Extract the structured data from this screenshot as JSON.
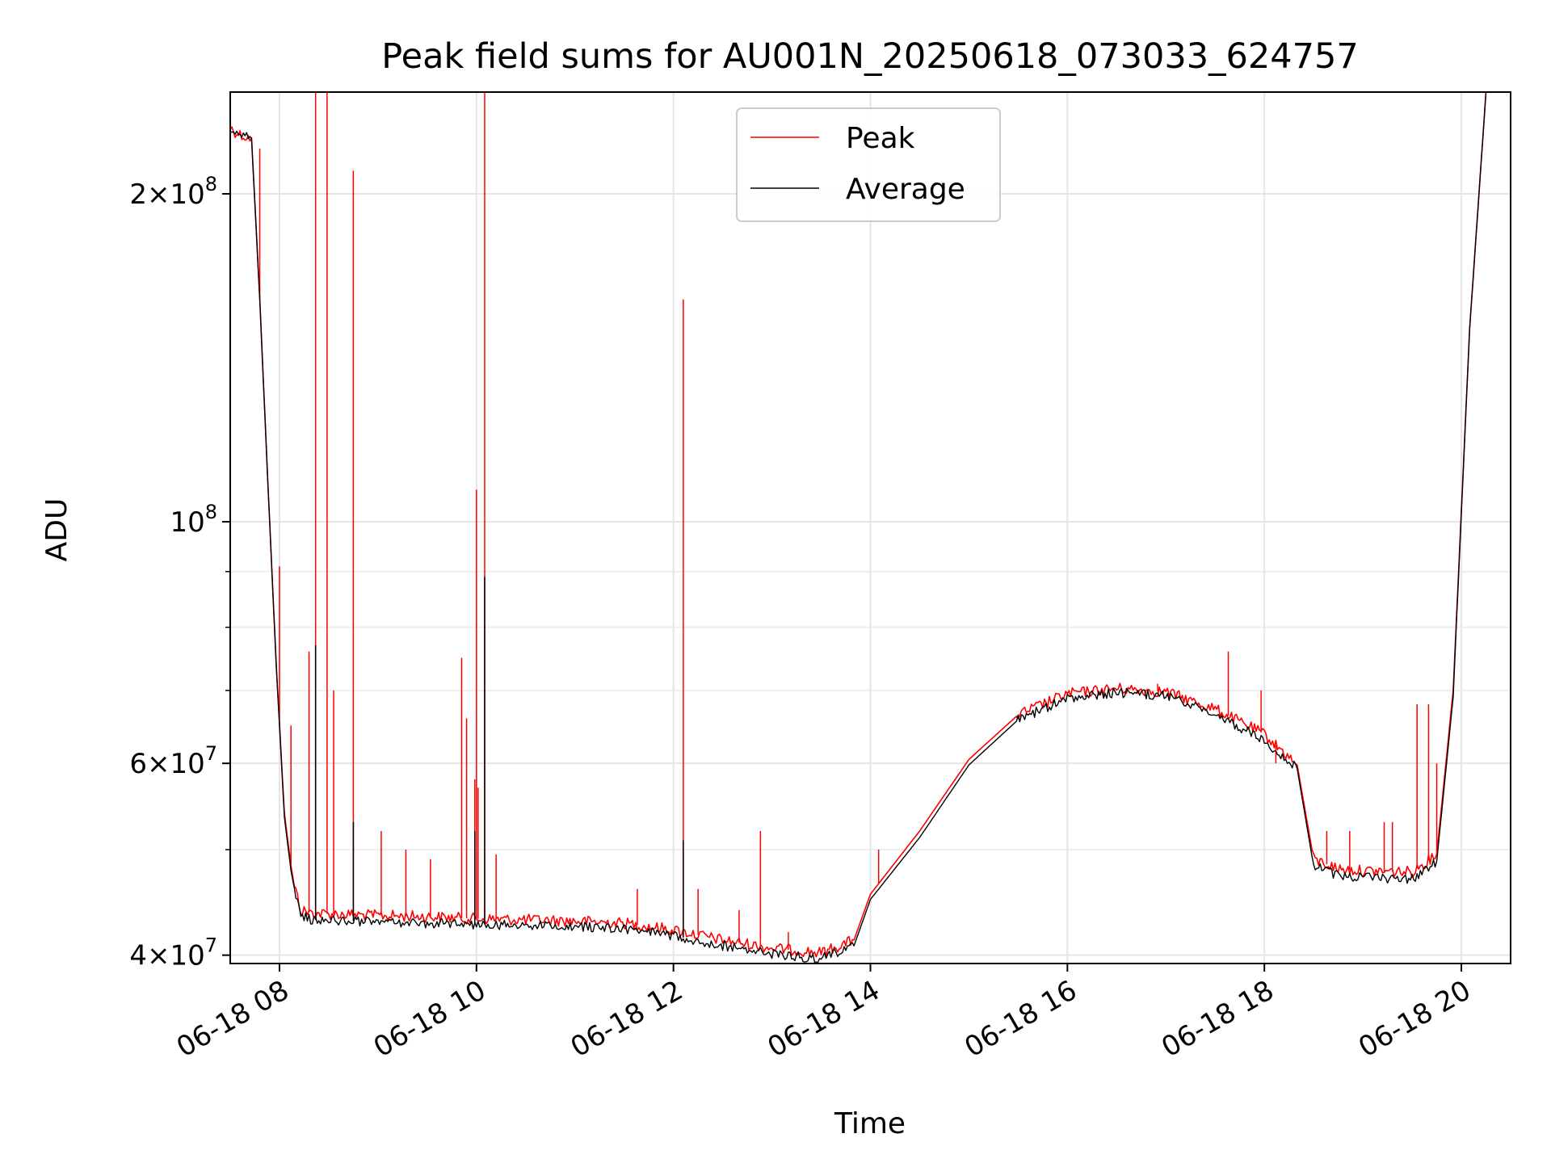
{
  "chart_data": {
    "type": "line",
    "title": "Peak field sums for AU001N_20250618_073033_624757",
    "xlabel": "Time",
    "ylabel": "ADU",
    "y_scale": "log",
    "grid": true,
    "legend_position": "upper-center",
    "xlim": [
      "2025-06-18 07:30",
      "2025-06-18 20:30"
    ],
    "ylim": [
      39300000,
      248000000
    ],
    "x_ticks": [
      {
        "t": "2025-06-18 08:00",
        "label": "06-18 08"
      },
      {
        "t": "2025-06-18 10:00",
        "label": "06-18 10"
      },
      {
        "t": "2025-06-18 12:00",
        "label": "06-18 12"
      },
      {
        "t": "2025-06-18 14:00",
        "label": "06-18 14"
      },
      {
        "t": "2025-06-18 16:00",
        "label": "06-18 16"
      },
      {
        "t": "2025-06-18 18:00",
        "label": "06-18 18"
      },
      {
        "t": "2025-06-18 20:00",
        "label": "06-18 20"
      }
    ],
    "y_ticks": [
      {
        "value": 40000000,
        "mant": "4",
        "exp": "7"
      },
      {
        "value": 60000000,
        "mant": "6",
        "exp": "7"
      },
      {
        "value": 100000000,
        "mant": "",
        "exp": "8"
      },
      {
        "value": 200000000,
        "mant": "2",
        "exp": "8"
      }
    ],
    "y_minor_ticks": [
      50000000,
      70000000,
      80000000,
      90000000
    ],
    "series": [
      {
        "name": "Peak",
        "color": "#ff0000",
        "points": [
          [
            "2025-06-18 07:30",
            230000000
          ],
          [
            "2025-06-18 07:33",
            228000000
          ],
          [
            "2025-06-18 07:38",
            226000000
          ],
          [
            "2025-06-18 07:43",
            225000000
          ],
          [
            "2025-06-18 07:48",
            160000000
          ],
          [
            "2025-06-18 07:53",
            108000000
          ],
          [
            "2025-06-18 07:58",
            74000000
          ],
          [
            "2025-06-18 08:03",
            54000000
          ],
          [
            "2025-06-18 08:08",
            47000000
          ],
          [
            "2025-06-18 08:13",
            44000000
          ],
          [
            "2025-06-18 08:20",
            43700000
          ],
          [
            "2025-06-18 08:40",
            43600000
          ],
          [
            "2025-06-18 09:00",
            43500000
          ],
          [
            "2025-06-18 09:30",
            43400000
          ],
          [
            "2025-06-18 10:00",
            43200000
          ],
          [
            "2025-06-18 10:30",
            43100000
          ],
          [
            "2025-06-18 11:00",
            43000000
          ],
          [
            "2025-06-18 11:30",
            42800000
          ],
          [
            "2025-06-18 12:00",
            42200000
          ],
          [
            "2025-06-18 12:30",
            41300000
          ],
          [
            "2025-06-18 13:00",
            40600000
          ],
          [
            "2025-06-18 13:30",
            40200000
          ],
          [
            "2025-06-18 13:50",
            41300000
          ],
          [
            "2025-06-18 14:00",
            45500000
          ],
          [
            "2025-06-18 14:30",
            52000000
          ],
          [
            "2025-06-18 15:00",
            60500000
          ],
          [
            "2025-06-18 15:30",
            66500000
          ],
          [
            "2025-06-18 16:00",
            69500000
          ],
          [
            "2025-06-18 16:30",
            70300000
          ],
          [
            "2025-06-18 17:00",
            69800000
          ],
          [
            "2025-06-18 17:30",
            67300000
          ],
          [
            "2025-06-18 18:00",
            63800000
          ],
          [
            "2025-06-18 18:20",
            59800000
          ],
          [
            "2025-06-18 18:30",
            49000000
          ],
          [
            "2025-06-18 18:45",
            48000000
          ],
          [
            "2025-06-18 19:00",
            47800000
          ],
          [
            "2025-06-18 19:30",
            47700000
          ],
          [
            "2025-06-18 19:45",
            49500000
          ],
          [
            "2025-06-18 19:55",
            70000000
          ],
          [
            "2025-06-18 20:05",
            150000000
          ],
          [
            "2025-06-18 20:15",
            248000000
          ]
        ],
        "spikes": [
          [
            "2025-06-18 07:48",
            220000000
          ],
          [
            "2025-06-18 08:00",
            91000000
          ],
          [
            "2025-06-18 08:07",
            65000000
          ],
          [
            "2025-06-18 08:18",
            76000000
          ],
          [
            "2025-06-18 08:22",
            248000000
          ],
          [
            "2025-06-18 08:29",
            248000000
          ],
          [
            "2025-06-18 08:33",
            70000000
          ],
          [
            "2025-06-18 08:45",
            210000000
          ],
          [
            "2025-06-18 09:02",
            52000000
          ],
          [
            "2025-06-18 09:17",
            50000000
          ],
          [
            "2025-06-18 09:32",
            49000000
          ],
          [
            "2025-06-18 09:51",
            75000000
          ],
          [
            "2025-06-18 09:54",
            66000000
          ],
          [
            "2025-06-18 09:59",
            58000000
          ],
          [
            "2025-06-18 10:00",
            107000000
          ],
          [
            "2025-06-18 10:01",
            57000000
          ],
          [
            "2025-06-18 10:05",
            248000000
          ],
          [
            "2025-06-18 10:12",
            49500000
          ],
          [
            "2025-06-18 11:38",
            46000000
          ],
          [
            "2025-06-18 12:06",
            160000000
          ],
          [
            "2025-06-18 12:15",
            46000000
          ],
          [
            "2025-06-18 12:40",
            44000000
          ],
          [
            "2025-06-18 12:53",
            52000000
          ],
          [
            "2025-06-18 13:10",
            42000000
          ],
          [
            "2025-06-18 14:05",
            50000000
          ],
          [
            "2025-06-18 16:55",
            71000000
          ],
          [
            "2025-06-18 17:38",
            76000000
          ],
          [
            "2025-06-18 17:58",
            70000000
          ],
          [
            "2025-06-18 18:07",
            60000000
          ],
          [
            "2025-06-18 18:38",
            52000000
          ],
          [
            "2025-06-18 18:52",
            52000000
          ],
          [
            "2025-06-18 19:13",
            53000000
          ],
          [
            "2025-06-18 19:18",
            53000000
          ],
          [
            "2025-06-18 19:33",
            68000000
          ],
          [
            "2025-06-18 19:40",
            68000000
          ],
          [
            "2025-06-18 19:45",
            60000000
          ]
        ]
      },
      {
        "name": "Average",
        "color": "#000000",
        "points": [
          [
            "2025-06-18 07:30",
            230000000
          ],
          [
            "2025-06-18 07:33",
            228000000
          ],
          [
            "2025-06-18 07:38",
            226000000
          ],
          [
            "2025-06-18 07:43",
            225000000
          ],
          [
            "2025-06-18 07:48",
            160000000
          ],
          [
            "2025-06-18 07:53",
            108000000
          ],
          [
            "2025-06-18 07:58",
            74000000
          ],
          [
            "2025-06-18 08:03",
            53500000
          ],
          [
            "2025-06-18 08:08",
            46500000
          ],
          [
            "2025-06-18 08:13",
            43500000
          ],
          [
            "2025-06-18 08:20",
            43100000
          ],
          [
            "2025-06-18 08:40",
            43000000
          ],
          [
            "2025-06-18 09:00",
            42900000
          ],
          [
            "2025-06-18 09:30",
            42800000
          ],
          [
            "2025-06-18 10:00",
            42700000
          ],
          [
            "2025-06-18 10:30",
            42600000
          ],
          [
            "2025-06-18 11:00",
            42500000
          ],
          [
            "2025-06-18 11:30",
            42300000
          ],
          [
            "2025-06-18 12:00",
            41700000
          ],
          [
            "2025-06-18 12:30",
            40800000
          ],
          [
            "2025-06-18 13:00",
            40100000
          ],
          [
            "2025-06-18 13:30",
            39700000
          ],
          [
            "2025-06-18 13:50",
            40800000
          ],
          [
            "2025-06-18 14:00",
            45000000
          ],
          [
            "2025-06-18 14:30",
            51300000
          ],
          [
            "2025-06-18 15:00",
            59800000
          ],
          [
            "2025-06-18 15:30",
            65800000
          ],
          [
            "2025-06-18 16:00",
            68800000
          ],
          [
            "2025-06-18 16:30",
            69700000
          ],
          [
            "2025-06-18 17:00",
            69200000
          ],
          [
            "2025-06-18 17:30",
            66600000
          ],
          [
            "2025-06-18 18:00",
            63000000
          ],
          [
            "2025-06-18 18:20",
            59300000
          ],
          [
            "2025-06-18 18:30",
            48300000
          ],
          [
            "2025-06-18 18:45",
            47300000
          ],
          [
            "2025-06-18 19:00",
            47100000
          ],
          [
            "2025-06-18 19:30",
            47000000
          ],
          [
            "2025-06-18 19:45",
            48800000
          ],
          [
            "2025-06-18 19:55",
            69000000
          ],
          [
            "2025-06-18 20:05",
            150000000
          ],
          [
            "2025-06-18 20:15",
            248000000
          ]
        ],
        "spikes": [
          [
            "2025-06-18 08:22",
            77000000
          ],
          [
            "2025-06-18 08:45",
            53000000
          ],
          [
            "2025-06-18 10:05",
            89000000
          ],
          [
            "2025-06-18 12:06",
            51000000
          ],
          [
            "2025-06-18 09:59",
            52000000
          ]
        ]
      }
    ]
  }
}
